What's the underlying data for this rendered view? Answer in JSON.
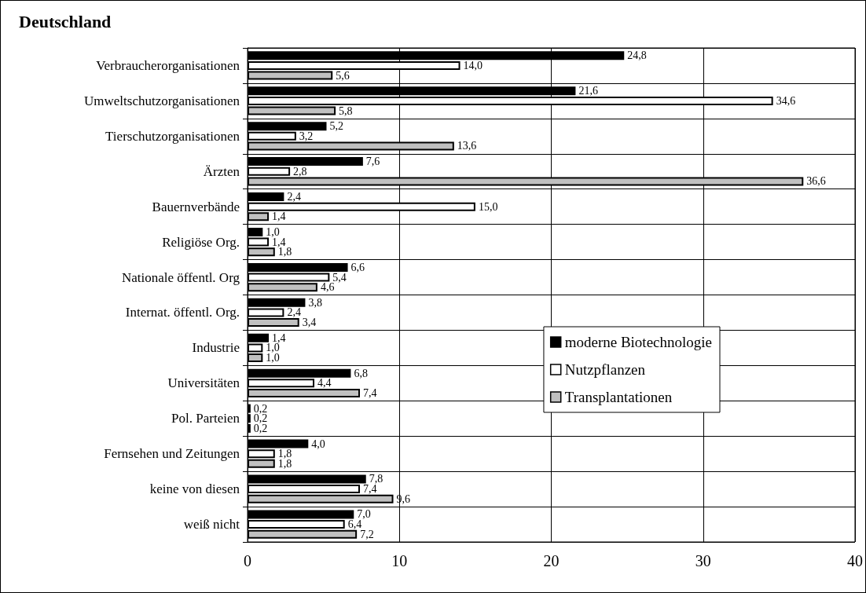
{
  "chart_data": {
    "type": "bar",
    "orientation": "horizontal",
    "title": "Deutschland",
    "categories": [
      "Verbraucherorganisationen",
      "Umweltschutzorganisationen",
      "Tierschutzorganisationen",
      "Ärzten",
      "Bauernverbände",
      "Religiöse Org.",
      "Nationale öffentl. Org",
      "Internat. öffentl. Org.",
      "Industrie",
      "Universitäten",
      "Pol. Parteien",
      "Fernsehen und Zeitungen",
      "keine von diesen",
      "weiß nicht"
    ],
    "series": [
      {
        "name": "moderne Biotechnologie",
        "color": "#000000",
        "values": [
          24.8,
          21.6,
          5.2,
          7.6,
          2.4,
          1.0,
          6.6,
          3.8,
          1.4,
          6.8,
          0.2,
          4.0,
          7.8,
          7.0
        ],
        "value_labels": [
          "24,8",
          "21,6",
          "5,2",
          "7,6",
          "2,4",
          "1,0",
          "6,6",
          "3,8",
          "1,4",
          "6,8",
          "0,2",
          "4,0",
          "7,8",
          "7,0"
        ]
      },
      {
        "name": "Nutzpflanzen",
        "color": "#ffffff",
        "values": [
          14.0,
          34.6,
          3.2,
          2.8,
          15.0,
          1.4,
          5.4,
          2.4,
          1.0,
          4.4,
          0.2,
          1.8,
          7.4,
          6.4
        ],
        "value_labels": [
          "14,0",
          "34,6",
          "3,2",
          "2,8",
          "15,0",
          "1,4",
          "5,4",
          "2,4",
          "1,0",
          "4,4",
          "0,2",
          "1,8",
          "7,4",
          "6,4"
        ]
      },
      {
        "name": "Transplantationen",
        "color": "#c0c0c0",
        "values": [
          5.6,
          5.8,
          13.6,
          36.6,
          1.4,
          1.8,
          4.6,
          3.4,
          1.0,
          7.4,
          0.2,
          1.8,
          9.6,
          7.2
        ],
        "value_labels": [
          "5,6",
          "5,8",
          "13,6",
          "36,6",
          "1,4",
          "1,8",
          "4,6",
          "3,4",
          "1,0",
          "7,4",
          "0,2",
          "1,8",
          "9,6",
          "7,2"
        ]
      }
    ],
    "xlim": [
      0,
      40
    ],
    "xticks": [
      0,
      10,
      20,
      30,
      40
    ],
    "grid": true,
    "legend": "right"
  }
}
